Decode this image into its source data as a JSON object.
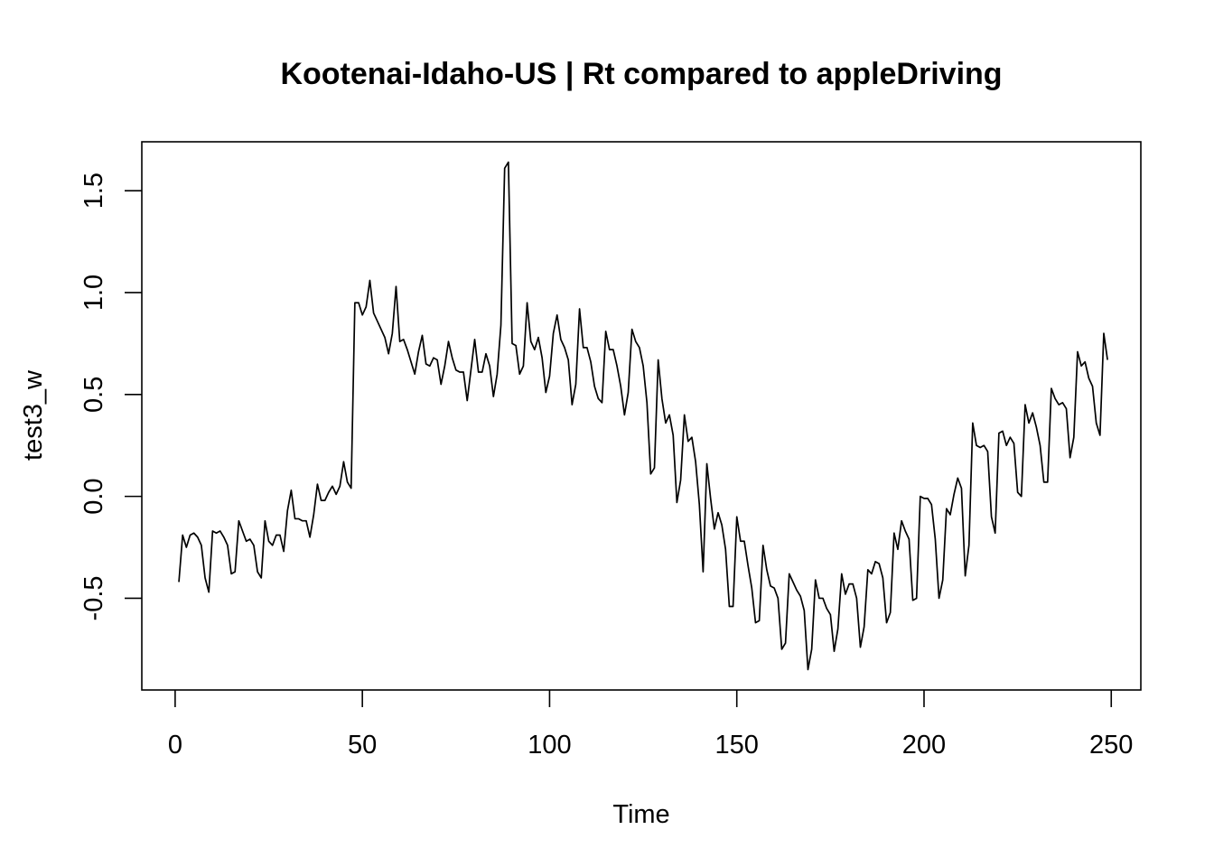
{
  "chart_data": {
    "type": "line",
    "title": "Kootenai-Idaho-US | Rt compared to appleDriving",
    "xlabel": "Time",
    "ylabel": "test3_w",
    "xlim": [
      -8.9,
      257.9
    ],
    "ylim": [
      -0.95,
      1.74
    ],
    "x_ticks": [
      0,
      50,
      100,
      150,
      200,
      250
    ],
    "x_tick_labels": [
      "0",
      "50",
      "100",
      "150",
      "200",
      "250"
    ],
    "y_ticks": [
      -0.5,
      0.0,
      0.5,
      1.0,
      1.5
    ],
    "y_tick_labels": [
      "-0.5",
      "0.0",
      "0.5",
      "1.0",
      "1.5"
    ],
    "grid": false,
    "line_color": "#000000",
    "series": [
      {
        "x_start": 1,
        "values": [
          -0.42,
          -0.19,
          -0.25,
          -0.19,
          -0.18,
          -0.2,
          -0.24,
          -0.4,
          -0.47,
          -0.17,
          -0.18,
          -0.17,
          -0.2,
          -0.24,
          -0.38,
          -0.37,
          -0.12,
          -0.17,
          -0.22,
          -0.21,
          -0.24,
          -0.37,
          -0.4,
          -0.12,
          -0.22,
          -0.24,
          -0.19,
          -0.19,
          -0.27,
          -0.07,
          0.03,
          -0.11,
          -0.11,
          -0.12,
          -0.12,
          -0.2,
          -0.09,
          0.06,
          -0.02,
          -0.02,
          0.02,
          0.05,
          0.01,
          0.05,
          0.17,
          0.07,
          0.04,
          0.95,
          0.95,
          0.89,
          0.93,
          1.06,
          0.9,
          0.86,
          0.82,
          0.78,
          0.7,
          0.8,
          1.03,
          0.76,
          0.77,
          0.72,
          0.66,
          0.6,
          0.71,
          0.79,
          0.65,
          0.64,
          0.68,
          0.67,
          0.55,
          0.64,
          0.76,
          0.68,
          0.62,
          0.61,
          0.61,
          0.47,
          0.62,
          0.77,
          0.61,
          0.61,
          0.7,
          0.64,
          0.49,
          0.6,
          0.84,
          1.61,
          1.64,
          0.75,
          0.74,
          0.6,
          0.64,
          0.95,
          0.76,
          0.72,
          0.78,
          0.68,
          0.51,
          0.59,
          0.8,
          0.89,
          0.77,
          0.73,
          0.67,
          0.45,
          0.55,
          0.92,
          0.73,
          0.73,
          0.66,
          0.54,
          0.48,
          0.46,
          0.81,
          0.72,
          0.72,
          0.64,
          0.54,
          0.4,
          0.51,
          0.82,
          0.76,
          0.73,
          0.64,
          0.46,
          0.11,
          0.14,
          0.67,
          0.48,
          0.36,
          0.4,
          0.3,
          -0.03,
          0.08,
          0.4,
          0.27,
          0.29,
          0.17,
          -0.04,
          -0.37,
          0.16,
          -0.01,
          -0.16,
          -0.08,
          -0.14,
          -0.26,
          -0.54,
          -0.54,
          -0.1,
          -0.22,
          -0.22,
          -0.34,
          -0.45,
          -0.62,
          -0.61,
          -0.24,
          -0.36,
          -0.44,
          -0.45,
          -0.5,
          -0.75,
          -0.72,
          -0.38,
          -0.42,
          -0.46,
          -0.49,
          -0.56,
          -0.85,
          -0.75,
          -0.41,
          -0.5,
          -0.5,
          -0.55,
          -0.58,
          -0.76,
          -0.65,
          -0.38,
          -0.48,
          -0.43,
          -0.43,
          -0.5,
          -0.74,
          -0.64,
          -0.36,
          -0.38,
          -0.32,
          -0.33,
          -0.4,
          -0.62,
          -0.57,
          -0.18,
          -0.26,
          -0.12,
          -0.17,
          -0.21,
          -0.51,
          -0.5,
          0.0,
          -0.01,
          -0.01,
          -0.04,
          -0.21,
          -0.5,
          -0.41,
          -0.06,
          -0.09,
          0.01,
          0.09,
          0.04,
          -0.39,
          -0.24,
          0.36,
          0.25,
          0.24,
          0.25,
          0.22,
          -0.1,
          -0.18,
          0.31,
          0.32,
          0.25,
          0.29,
          0.26,
          0.02,
          0.0,
          0.45,
          0.36,
          0.41,
          0.34,
          0.25,
          0.07,
          0.07,
          0.53,
          0.48,
          0.45,
          0.46,
          0.43,
          0.19,
          0.29,
          0.71,
          0.64,
          0.66,
          0.58,
          0.54,
          0.36,
          0.3,
          0.8,
          0.67
        ]
      }
    ]
  }
}
